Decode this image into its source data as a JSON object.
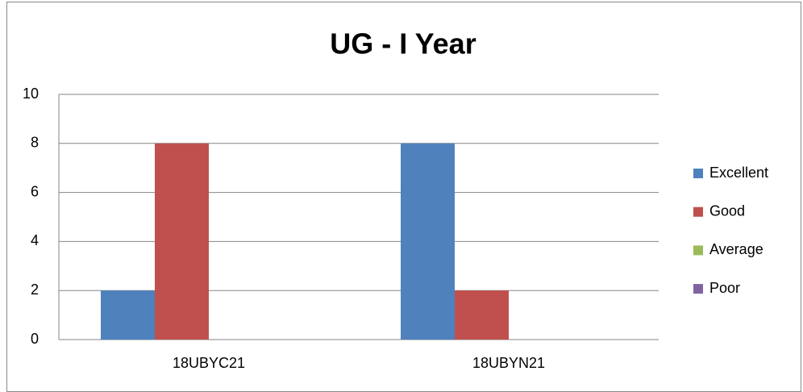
{
  "chart_data": {
    "type": "bar",
    "title": "UG - I Year",
    "categories": [
      "18UBYC21",
      "18UBYN21"
    ],
    "series": [
      {
        "name": "Excellent",
        "color": "#4f81bd",
        "values": [
          2,
          8
        ]
      },
      {
        "name": "Good",
        "color": "#c0504d",
        "values": [
          8,
          2
        ]
      },
      {
        "name": "Average",
        "color": "#9bbb59",
        "values": [
          0,
          0
        ]
      },
      {
        "name": "Poor",
        "color": "#8064a2",
        "values": [
          0,
          0
        ]
      }
    ],
    "ylim": [
      0,
      10
    ],
    "yticks": [
      0,
      2,
      4,
      6,
      8,
      10
    ],
    "grid": true,
    "legend": "right"
  }
}
